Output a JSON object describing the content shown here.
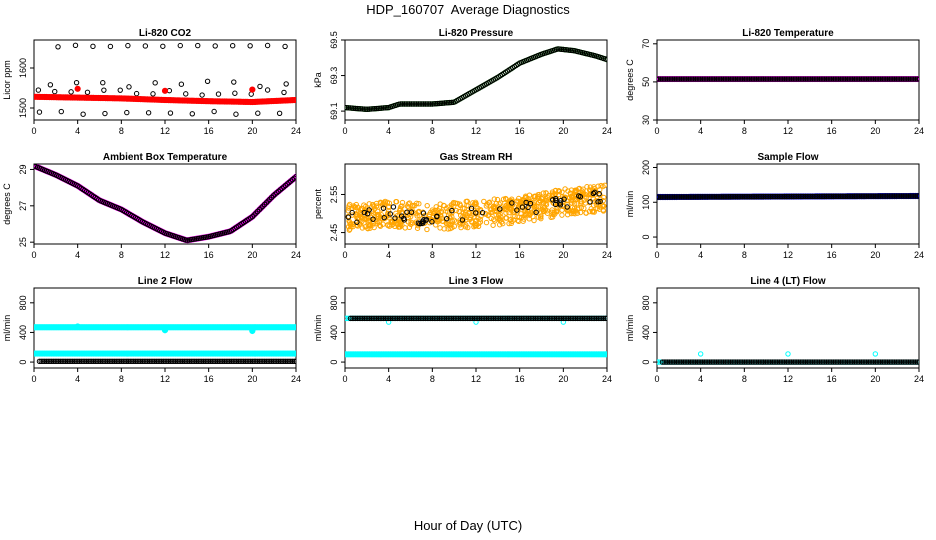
{
  "title": "HDP_160707  Average Diagnostics",
  "x_caption": "Hour of Day (UTC)",
  "chart_data": [
    {
      "type": "scatter",
      "title": "Li-820 CO2",
      "ylabel": "Licor ppm",
      "xlim": [
        0,
        24
      ],
      "ylim": [
        1470,
        1670
      ],
      "xticks": [
        0,
        4,
        8,
        12,
        16,
        20,
        24
      ],
      "yticks": [
        1500,
        1600
      ],
      "grid": false,
      "legend": "none",
      "series": [
        {
          "color": "#000000",
          "style": "open",
          "pattern": "scatter",
          "bands": [
            {
              "from": 2.2,
              "to": 23.8,
              "step": 1.6,
              "center": 1655,
              "amp": 2
            },
            {
              "from": 1.5,
              "to": 23.8,
              "step": 2.4,
              "center": 1560,
              "amp": 8
            },
            {
              "from": 0.4,
              "to": 23.8,
              "step": 1.5,
              "center": 1538,
              "amp": 8
            },
            {
              "from": 0.5,
              "to": 23.8,
              "step": 2.0,
              "center": 1488,
              "amp": 4
            }
          ]
        },
        {
          "color": "#ff0000",
          "style": "filled",
          "pattern": "trend",
          "x": [
            0,
            4,
            8,
            12,
            16,
            20,
            24
          ],
          "y": [
            1528,
            1526,
            1524,
            1520,
            1517,
            1515,
            1520
          ],
          "extra": [
            [
              4,
              1548
            ],
            [
              12,
              1543
            ],
            [
              20,
              1546
            ]
          ]
        }
      ]
    },
    {
      "type": "scatter",
      "title": "Li-820 Pressure",
      "ylabel": "kPa",
      "xlim": [
        0,
        24
      ],
      "ylim": [
        69.05,
        69.5
      ],
      "xticks": [
        0,
        4,
        8,
        12,
        16,
        20,
        24
      ],
      "yticks": [
        69.1,
        69.3,
        69.5
      ],
      "grid": false,
      "legend": "none",
      "series": [
        {
          "color": "#00cc00",
          "style": "open",
          "pattern": "trend",
          "x": [
            0,
            2,
            4,
            5,
            8,
            10,
            12,
            14,
            16,
            18,
            19.5,
            21,
            23,
            24
          ],
          "y": [
            69.12,
            69.11,
            69.12,
            69.14,
            69.14,
            69.15,
            69.22,
            69.29,
            69.37,
            69.42,
            69.45,
            69.44,
            69.41,
            69.39
          ]
        },
        {
          "color": "#000000",
          "style": "open",
          "pattern": "trend",
          "x": [
            0,
            2,
            4,
            5,
            8,
            10,
            12,
            14,
            16,
            18,
            19.5,
            21,
            23,
            24
          ],
          "y": [
            69.12,
            69.11,
            69.12,
            69.14,
            69.14,
            69.15,
            69.22,
            69.29,
            69.37,
            69.42,
            69.45,
            69.44,
            69.41,
            69.39
          ]
        }
      ]
    },
    {
      "type": "scatter",
      "title": "Li-820 Temperature",
      "ylabel": "degrees C",
      "xlim": [
        0,
        24
      ],
      "ylim": [
        30,
        72
      ],
      "xticks": [
        0,
        4,
        8,
        12,
        16,
        20,
        24
      ],
      "yticks": [
        30,
        50,
        70
      ],
      "grid": false,
      "legend": "none",
      "series": [
        {
          "color": "#ff00ff",
          "style": "filled",
          "pattern": "trend",
          "x": [
            0,
            24
          ],
          "y": [
            51.5,
            51.5
          ]
        },
        {
          "color": "#000000",
          "style": "open",
          "pattern": "trend",
          "x": [
            0,
            24
          ],
          "y": [
            51.5,
            51.5
          ]
        }
      ]
    },
    {
      "type": "scatter",
      "title": "Ambient Box Temperature",
      "ylabel": "degrees C",
      "xlim": [
        0,
        24
      ],
      "ylim": [
        24.9,
        29.3
      ],
      "xticks": [
        0,
        4,
        8,
        12,
        16,
        20,
        24
      ],
      "yticks": [
        25,
        27,
        29
      ],
      "grid": false,
      "legend": "none",
      "series": [
        {
          "color": "#ff00ff",
          "style": "filled",
          "pattern": "trend",
          "x": [
            0,
            2,
            4,
            6,
            8,
            10,
            12,
            14,
            16,
            18,
            20,
            22,
            24
          ],
          "y": [
            29.2,
            28.7,
            28.1,
            27.3,
            26.8,
            26.1,
            25.5,
            25.1,
            25.3,
            25.6,
            26.4,
            27.6,
            28.6
          ]
        },
        {
          "color": "#000000",
          "style": "open",
          "pattern": "trend",
          "x": [
            0,
            2,
            4,
            6,
            8,
            10,
            12,
            14,
            16,
            18,
            20,
            22,
            24
          ],
          "y": [
            29.2,
            28.7,
            28.1,
            27.3,
            26.8,
            26.1,
            25.5,
            25.1,
            25.3,
            25.6,
            26.4,
            27.6,
            28.6
          ]
        }
      ]
    },
    {
      "type": "scatter",
      "title": "Gas Stream RH",
      "ylabel": "percent",
      "xlim": [
        0,
        24
      ],
      "ylim": [
        2.42,
        2.63
      ],
      "xticks": [
        0,
        4,
        8,
        12,
        16,
        20,
        24
      ],
      "yticks": [
        2.45,
        2.55
      ],
      "grid": false,
      "legend": "none",
      "series": [
        {
          "color": "#ffa500",
          "style": "open",
          "pattern": "scatter",
          "trend_x": [
            0,
            4,
            8,
            12,
            16,
            20,
            24
          ],
          "trend_y": [
            2.49,
            2.5,
            2.49,
            2.5,
            2.51,
            2.53,
            2.54
          ],
          "spread": 0.035
        },
        {
          "color": "#000000",
          "style": "open",
          "pattern": "scatter",
          "trend_x": [
            0,
            4,
            8,
            12,
            16,
            20,
            24
          ],
          "trend_y": [
            2.49,
            2.5,
            2.49,
            2.5,
            2.51,
            2.53,
            2.54
          ],
          "spread": 0.02
        }
      ]
    },
    {
      "type": "scatter",
      "title": "Sample Flow",
      "ylabel": "ml/min",
      "xlim": [
        0,
        24
      ],
      "ylim": [
        -20,
        210
      ],
      "xticks": [
        0,
        4,
        8,
        12,
        16,
        20,
        24
      ],
      "yticks": [
        0,
        100,
        200
      ],
      "grid": false,
      "legend": "none",
      "series": [
        {
          "color": "#0000cc",
          "style": "filled",
          "pattern": "trend",
          "x": [
            0,
            24
          ],
          "y": [
            115,
            118
          ]
        },
        {
          "color": "#000000",
          "style": "open",
          "pattern": "trend",
          "x": [
            0,
            24
          ],
          "y": [
            115,
            118
          ]
        }
      ]
    },
    {
      "type": "scatter",
      "title": "Line 2 Flow",
      "ylabel": "ml/min",
      "xlim": [
        0,
        24
      ],
      "ylim": [
        -80,
        1000
      ],
      "xticks": [
        0,
        4,
        8,
        12,
        16,
        20,
        24
      ],
      "yticks": [
        0,
        400,
        800
      ],
      "grid": false,
      "legend": "none",
      "series": [
        {
          "color": "#00ffff",
          "style": "filled",
          "pattern": "trend",
          "x": [
            0,
            24
          ],
          "y": [
            470,
            470
          ],
          "extra": [
            [
              4,
              480
            ],
            [
              12,
              430
            ],
            [
              20,
              420
            ]
          ]
        },
        {
          "color": "#00ffff",
          "style": "filled",
          "pattern": "trend",
          "x": [
            0,
            24
          ],
          "y": [
            115,
            115
          ]
        },
        {
          "color": "#000000",
          "style": "open",
          "pattern": "trend",
          "x": [
            0.5,
            24
          ],
          "y": [
            10,
            10
          ]
        }
      ]
    },
    {
      "type": "scatter",
      "title": "Line 3 Flow",
      "ylabel": "ml/min",
      "xlim": [
        0,
        24
      ],
      "ylim": [
        -80,
        1000
      ],
      "xticks": [
        0,
        4,
        8,
        12,
        16,
        20,
        24
      ],
      "yticks": [
        0,
        400,
        800
      ],
      "grid": false,
      "legend": "none",
      "series": [
        {
          "color": "#00ffff",
          "style": "open",
          "pattern": "trend",
          "x": [
            0,
            24
          ],
          "y": [
            590,
            590
          ],
          "extra": [
            [
              4,
              540
            ],
            [
              12,
              540
            ],
            [
              20,
              540
            ]
          ]
        },
        {
          "color": "#000000",
          "style": "open",
          "pattern": "trend",
          "x": [
            0.5,
            24
          ],
          "y": [
            590,
            590
          ]
        },
        {
          "color": "#00ffff",
          "style": "filled",
          "pattern": "trend",
          "x": [
            0,
            24
          ],
          "y": [
            105,
            105
          ]
        }
      ]
    },
    {
      "type": "scatter",
      "title": "Line 4 (LT) Flow",
      "ylabel": "ml/min",
      "xlim": [
        0,
        24
      ],
      "ylim": [
        -80,
        1000
      ],
      "xticks": [
        0,
        4,
        8,
        12,
        16,
        20,
        24
      ],
      "yticks": [
        0,
        400,
        800
      ],
      "grid": false,
      "legend": "none",
      "series": [
        {
          "color": "#00ffff",
          "style": "open",
          "pattern": "trend",
          "x": [
            0,
            24
          ],
          "y": [
            0,
            0
          ],
          "extra": [
            [
              4,
              110
            ],
            [
              12,
              110
            ],
            [
              20,
              110
            ]
          ]
        },
        {
          "color": "#000000",
          "style": "open",
          "pattern": "trend",
          "x": [
            0.5,
            24
          ],
          "y": [
            0,
            0
          ]
        }
      ]
    }
  ]
}
